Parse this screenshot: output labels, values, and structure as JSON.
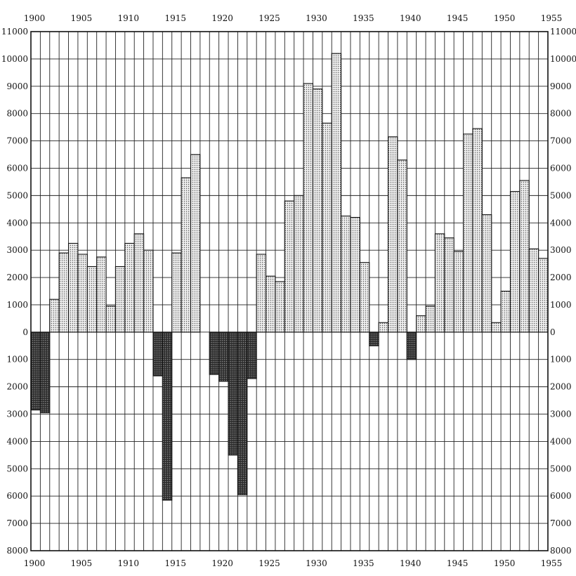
{
  "chart_data": {
    "type": "bar",
    "x_start_year": 1900,
    "x_end_year": 1955,
    "x_tick_labels": [
      "1900",
      "1905",
      "1910",
      "1915",
      "1920",
      "1925",
      "1930",
      "1935",
      "1940",
      "1945",
      "1950",
      "1955"
    ],
    "y_tick_labels_upper": [
      "11000",
      "10000",
      "9000",
      "8000",
      "7000",
      "6000",
      "5000",
      "4000",
      "3000",
      "2000",
      "1000",
      "0"
    ],
    "y_tick_labels_lower": [
      "1000",
      "2000",
      "3000",
      "4000",
      "5000",
      "6000",
      "7000",
      "8000"
    ],
    "ylim": [
      -8000,
      11000
    ],
    "grid": true,
    "years": [
      1900,
      1901,
      1902,
      1903,
      1904,
      1905,
      1906,
      1907,
      1908,
      1909,
      1910,
      1911,
      1912,
      1913,
      1914,
      1915,
      1916,
      1917,
      1918,
      1919,
      1920,
      1921,
      1922,
      1923,
      1924,
      1925,
      1926,
      1927,
      1928,
      1929,
      1930,
      1931,
      1932,
      1933,
      1934,
      1935,
      1936,
      1937,
      1938,
      1939,
      1940,
      1941,
      1942,
      1943,
      1944,
      1945,
      1946,
      1947,
      1948,
      1949,
      1950,
      1951,
      1952,
      1953,
      1954
    ],
    "values": [
      -2850,
      -2950,
      1200,
      2900,
      3250,
      2850,
      2400,
      2750,
      950,
      2400,
      3250,
      3600,
      3000,
      -1600,
      -6150,
      2900,
      5650,
      6500,
      0,
      -1550,
      -1800,
      -4500,
      -5950,
      -1700,
      2850,
      2050,
      1850,
      4800,
      5000,
      9100,
      8900,
      7650,
      10200,
      4250,
      4200,
      2550,
      -500,
      350,
      7150,
      6300,
      -1000,
      600,
      950,
      3600,
      3450,
      2950,
      7250,
      7450,
      4300,
      350,
      1500,
      5150,
      5550,
      3050,
      2700
    ],
    "colors": {
      "positive_fill": "#d9d9d9",
      "negative_fill": "#444444",
      "grid": "#222222",
      "text": "#111111"
    }
  }
}
